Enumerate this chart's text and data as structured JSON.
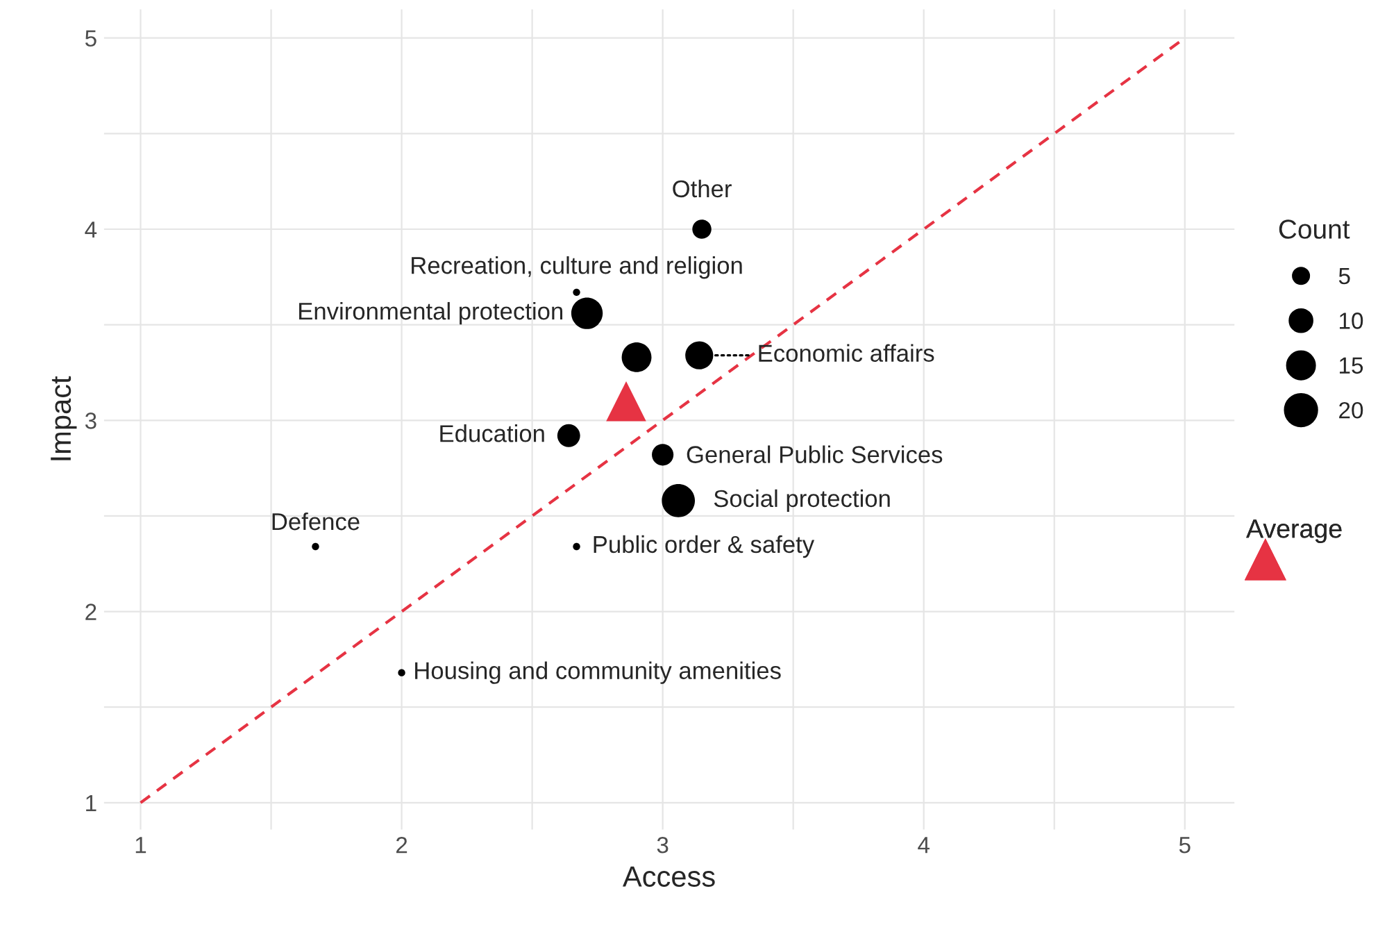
{
  "chart_data": {
    "type": "bubble",
    "xlabel": "Access",
    "ylabel": "Impact",
    "legend_title": "Count",
    "xlim": [
      0.86,
      5.19
    ],
    "ylim": [
      0.86,
      5.15
    ],
    "xticks": [
      1,
      {
        "value": 1.5,
        "label": null
      },
      2,
      {
        "value": 2.5,
        "label": null
      },
      3,
      {
        "value": 3.5,
        "label": null
      },
      4,
      {
        "value": 4.5,
        "label": null
      },
      5
    ],
    "yticks": [
      1,
      {
        "value": 1.5,
        "label": null
      },
      2,
      {
        "value": 2.5,
        "label": null
      },
      3,
      {
        "value": 3.5,
        "label": null
      },
      4,
      {
        "value": 4.5,
        "label": null
      },
      5
    ],
    "grid": true,
    "legend": "right",
    "size_legend": [
      5,
      10,
      15,
      20
    ],
    "series": [
      {
        "color": "#000000",
        "x": [
          3.15,
          2.67,
          2.71,
          2.9,
          3.14,
          2.64,
          3.0,
          3.06,
          2.67,
          1.67,
          2.0
        ],
        "values": [
          4.0,
          3.67,
          3.56,
          3.33,
          3.34,
          2.92,
          2.82,
          2.58,
          2.34,
          2.34,
          1.68
        ],
        "sizes": [
          7,
          1,
          19,
          17,
          15,
          10,
          9,
          21,
          1,
          1,
          1
        ]
      },
      {
        "type": "scatter",
        "name": "Average",
        "color": "#e63343",
        "marker": "triangle",
        "x": [
          2.86
        ],
        "values": [
          3.1
        ]
      },
      {
        "type": "line",
        "color": "#e63343",
        "line_style": "dashed",
        "x": [
          1,
          5
        ],
        "values": [
          1,
          5
        ]
      }
    ],
    "annotations": [
      {
        "text": "Other",
        "x": 3.15,
        "y": 4.0
      },
      {
        "text": "Recreation, culture and religion",
        "x": 2.67,
        "y": 3.67
      },
      {
        "text": "Environmental protection",
        "x": 2.71,
        "y": 3.56
      },
      {
        "text": "Economic affairs",
        "x": 3.14,
        "y": 3.34
      },
      {
        "text": "Education",
        "x": 2.64,
        "y": 2.92
      },
      {
        "text": "General Public Services",
        "x": 3.0,
        "y": 2.82
      },
      {
        "text": "Social protection",
        "x": 3.06,
        "y": 2.58
      },
      {
        "text": "Public order & safety",
        "x": 2.67,
        "y": 2.34
      },
      {
        "text": "Defence",
        "x": 1.67,
        "y": 2.34
      },
      {
        "text": "Housing and community amenities",
        "x": 2.0,
        "y": 1.68
      }
    ]
  }
}
